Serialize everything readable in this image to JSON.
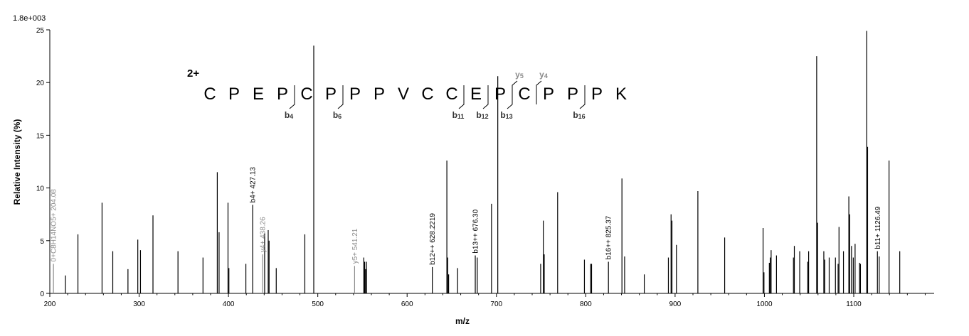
{
  "chart_data": {
    "type": "bar",
    "scale_label": "1.8e+003",
    "xlabel": "m/z",
    "ylabel": "Relative Intensity (%)",
    "xlim": [
      200,
      1190
    ],
    "ylim": [
      0,
      25
    ],
    "xticks": [
      200,
      300,
      400,
      500,
      600,
      700,
      800,
      900,
      1000,
      1100
    ],
    "yticks": [
      0,
      5,
      10,
      15,
      20,
      25
    ],
    "charge": "2+",
    "sequence": [
      "C",
      "P",
      "E",
      "P",
      "C",
      "P",
      "P",
      "P",
      "V",
      "C",
      "C",
      "E",
      "P",
      "C",
      "P",
      "P",
      "P",
      "K"
    ],
    "b_ions": [
      {
        "after": 4,
        "prefix": "b",
        "num": "4"
      },
      {
        "after": 6,
        "prefix": "b",
        "num": "6"
      },
      {
        "after": 11,
        "prefix": "b",
        "num": "11"
      },
      {
        "after": 12,
        "prefix": "b",
        "num": "12"
      },
      {
        "after": 13,
        "prefix": "b",
        "num": "13"
      },
      {
        "after": 16,
        "prefix": "b",
        "num": "16"
      }
    ],
    "y_ions": [
      {
        "after": 13,
        "prefix": "y",
        "num": "5"
      },
      {
        "after": 14,
        "prefix": "y",
        "num": "4"
      }
    ],
    "peaks": [
      {
        "mz": 204.08,
        "i": 2.8,
        "label": "0+C8H14NO5+ 204.08",
        "color": "#8c8c8c"
      },
      {
        "mz": 217.5,
        "i": 1.7
      },
      {
        "mz": 231.5,
        "i": 5.6
      },
      {
        "mz": 258.5,
        "i": 8.6
      },
      {
        "mz": 270.5,
        "i": 4.0
      },
      {
        "mz": 287.5,
        "i": 2.3
      },
      {
        "mz": 298.5,
        "i": 5.1
      },
      {
        "mz": 301.5,
        "i": 4.1
      },
      {
        "mz": 315.5,
        "i": 7.4
      },
      {
        "mz": 343.5,
        "i": 4.0
      },
      {
        "mz": 371.5,
        "i": 3.4
      },
      {
        "mz": 387.5,
        "i": 11.5
      },
      {
        "mz": 389.5,
        "i": 5.8
      },
      {
        "mz": 399.5,
        "i": 8.6
      },
      {
        "mz": 400.5,
        "i": 2.4
      },
      {
        "mz": 419.5,
        "i": 2.8
      },
      {
        "mz": 427.13,
        "i": 8.4,
        "label": "b4+ 427.13",
        "color": "#000000"
      },
      {
        "mz": 438.26,
        "i": 3.7,
        "label": "y4+ 438.26",
        "color": "#8c8c8c"
      },
      {
        "mz": 440.5,
        "i": 5.7
      },
      {
        "mz": 444.5,
        "i": 6.0
      },
      {
        "mz": 445.5,
        "i": 5.0
      },
      {
        "mz": 453.5,
        "i": 2.4
      },
      {
        "mz": 485.5,
        "i": 5.6
      },
      {
        "mz": 495.5,
        "i": 23.5
      },
      {
        "mz": 541.21,
        "i": 2.6,
        "label": "y5+ 541.21",
        "color": "#8c8c8c"
      },
      {
        "mz": 551.5,
        "i": 3.4
      },
      {
        "mz": 552.5,
        "i": 3.0
      },
      {
        "mz": 553.5,
        "i": 2.3
      },
      {
        "mz": 554.5,
        "i": 3.0
      },
      {
        "mz": 628.2219,
        "i": 2.5,
        "label": "b12++ 628.2219",
        "color": "#000000"
      },
      {
        "mz": 644.5,
        "i": 12.6
      },
      {
        "mz": 645.5,
        "i": 3.4
      },
      {
        "mz": 646.5,
        "i": 1.8
      },
      {
        "mz": 656.5,
        "i": 2.4
      },
      {
        "mz": 676.3,
        "i": 3.6,
        "label": "b13++ 676.30",
        "color": "#000000"
      },
      {
        "mz": 678.5,
        "i": 3.4
      },
      {
        "mz": 694.5,
        "i": 8.5
      },
      {
        "mz": 701.5,
        "i": 20.6
      },
      {
        "mz": 749.5,
        "i": 2.8
      },
      {
        "mz": 752.5,
        "i": 6.9
      },
      {
        "mz": 753.5,
        "i": 3.7
      },
      {
        "mz": 768.5,
        "i": 9.6
      },
      {
        "mz": 798.5,
        "i": 3.2
      },
      {
        "mz": 805.5,
        "i": 2.8
      },
      {
        "mz": 806.5,
        "i": 2.8
      },
      {
        "mz": 825.37,
        "i": 3.0,
        "label": "b16++ 825.37",
        "color": "#000000"
      },
      {
        "mz": 840.5,
        "i": 10.9
      },
      {
        "mz": 843.5,
        "i": 3.5
      },
      {
        "mz": 865.5,
        "i": 1.8
      },
      {
        "mz": 892.5,
        "i": 3.4
      },
      {
        "mz": 895.5,
        "i": 7.5
      },
      {
        "mz": 896.5,
        "i": 6.9
      },
      {
        "mz": 901.5,
        "i": 4.6
      },
      {
        "mz": 925.5,
        "i": 9.7
      },
      {
        "mz": 955.5,
        "i": 5.3
      },
      {
        "mz": 998.5,
        "i": 6.2
      },
      {
        "mz": 999.5,
        "i": 2.0
      },
      {
        "mz": 1005.5,
        "i": 2.9
      },
      {
        "mz": 1006.5,
        "i": 3.4
      },
      {
        "mz": 1007.5,
        "i": 4.1
      },
      {
        "mz": 1013.5,
        "i": 3.6
      },
      {
        "mz": 1032.5,
        "i": 3.4
      },
      {
        "mz": 1033.5,
        "i": 4.5
      },
      {
        "mz": 1039.5,
        "i": 4.0
      },
      {
        "mz": 1048.5,
        "i": 3.0
      },
      {
        "mz": 1049.5,
        "i": 4.0
      },
      {
        "mz": 1058.5,
        "i": 22.5
      },
      {
        "mz": 1059.5,
        "i": 6.7
      },
      {
        "mz": 1066.5,
        "i": 4.0
      },
      {
        "mz": 1067.5,
        "i": 3.2
      },
      {
        "mz": 1072.5,
        "i": 3.4
      },
      {
        "mz": 1079.5,
        "i": 3.4
      },
      {
        "mz": 1082.5,
        "i": 2.8
      },
      {
        "mz": 1083.5,
        "i": 6.3
      },
      {
        "mz": 1088.5,
        "i": 4.0
      },
      {
        "mz": 1094.5,
        "i": 9.2
      },
      {
        "mz": 1095.5,
        "i": 7.5
      },
      {
        "mz": 1097.5,
        "i": 4.5
      },
      {
        "mz": 1099.5,
        "i": 3.4
      },
      {
        "mz": 1101.5,
        "i": 4.7
      },
      {
        "mz": 1106.5,
        "i": 2.9
      },
      {
        "mz": 1107.5,
        "i": 2.8
      },
      {
        "mz": 1114.5,
        "i": 24.9
      },
      {
        "mz": 1115.5,
        "i": 13.9
      },
      {
        "mz": 1126.49,
        "i": 4.0,
        "label": "b11+ 1126.49",
        "color": "#000000"
      },
      {
        "mz": 1128.5,
        "i": 3.5
      },
      {
        "mz": 1139.5,
        "i": 12.6
      },
      {
        "mz": 1151.5,
        "i": 4.0
      }
    ]
  }
}
